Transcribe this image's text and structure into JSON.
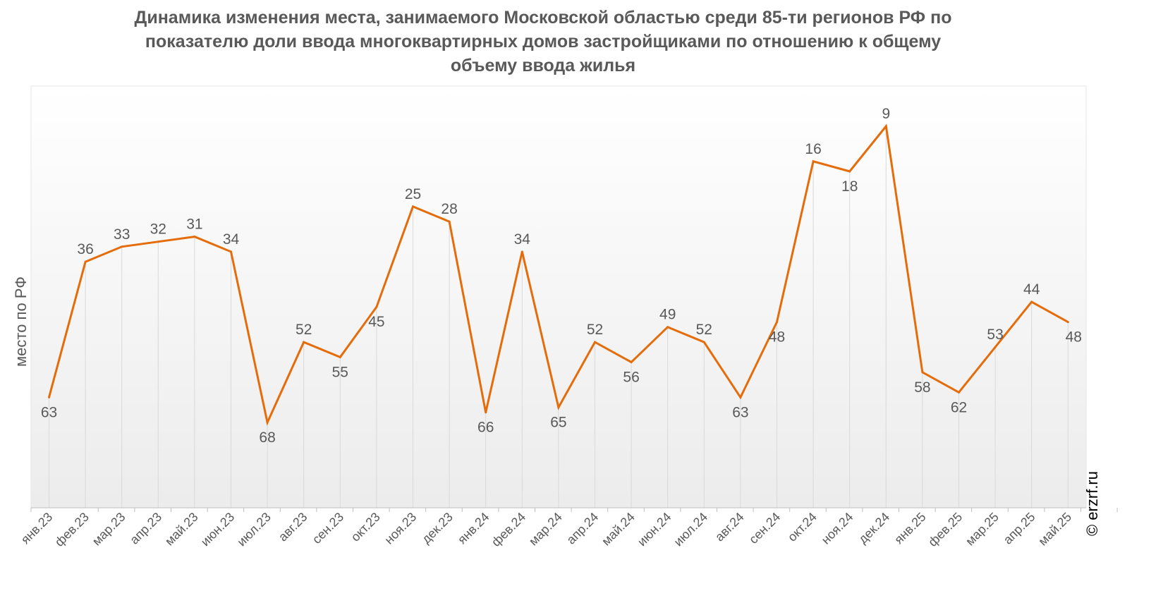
{
  "chart_data": {
    "type": "line",
    "title": "Динамика изменения места, занимаемого Московской областью среди 85-ти регионов РФ по показателю доли ввода многоквартирных домов застройщиками по отношению к общему объему ввода жилья",
    "title_lines": [
      "Динамика изменения места, занимаемого Московской областью среди 85-ти регионов РФ по",
      "показателю доли ввода многоквартирных домов застройщиками по отношению к общему",
      "объему ввода жилья"
    ],
    "xlabel": "",
    "ylabel": "место по РФ",
    "y_reversed": true,
    "ylim": [
      1,
      85
    ],
    "grid": false,
    "categories": [
      "янв.23",
      "фев.23",
      "мар.23",
      "апр.23",
      "май.23",
      "июн.23",
      "июл.23",
      "авг.23",
      "сен.23",
      "окт.23",
      "ноя.23",
      "дек.23",
      "янв.24",
      "фев.24",
      "мар.24",
      "апр.24",
      "май.24",
      "июн.24",
      "июл.24",
      "авг.24",
      "сен.24",
      "окт.24",
      "ноя.24",
      "дек.24",
      "янв.25",
      "фев.25",
      "мар.25",
      "апр.25",
      "май.25"
    ],
    "series": [
      {
        "color": "#E46C0A",
        "values": [
          63,
          36,
          33,
          32,
          31,
          34,
          68,
          52,
          55,
          45,
          25,
          28,
          66,
          34,
          65,
          52,
          56,
          49,
          52,
          63,
          48,
          16,
          18,
          9,
          58,
          62,
          53,
          44,
          48
        ]
      }
    ]
  },
  "watermark": "© erzrf.ru"
}
